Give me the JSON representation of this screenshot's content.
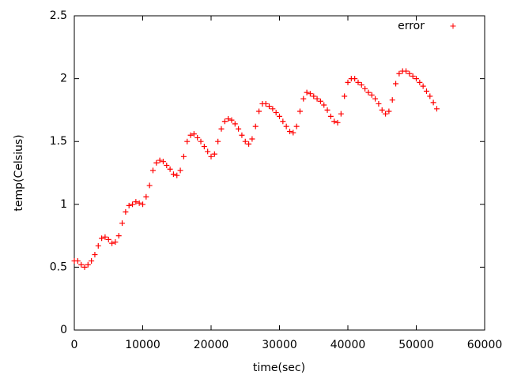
{
  "chart_data": {
    "type": "scatter",
    "x_label": "time(sec)",
    "y_label": "temp(Celsius)",
    "xlim": [
      0,
      60000
    ],
    "ylim": [
      0,
      2.5
    ],
    "xticks": [
      0,
      10000,
      20000,
      30000,
      40000,
      50000,
      60000
    ],
    "yticks": [
      0,
      0.5,
      1,
      1.5,
      2,
      2.5
    ],
    "legend": "top-right",
    "series": [
      {
        "name": "error",
        "color": "#ff0000",
        "x": [
          0,
          500,
          1000,
          1500,
          2000,
          2500,
          3000,
          3500,
          4000,
          4500,
          5000,
          5500,
          6000,
          6500,
          7000,
          7500,
          8000,
          8500,
          9000,
          9500,
          10000,
          10500,
          11000,
          11500,
          12000,
          12500,
          13000,
          13500,
          14000,
          14500,
          15000,
          15500,
          16000,
          16500,
          17000,
          17500,
          18000,
          18500,
          19000,
          19500,
          20000,
          20500,
          21000,
          21500,
          22000,
          22500,
          23000,
          23500,
          24000,
          24500,
          25000,
          25500,
          26000,
          26500,
          27000,
          27500,
          28000,
          28500,
          29000,
          29500,
          30000,
          30500,
          31000,
          31500,
          32000,
          32500,
          33000,
          33500,
          34000,
          34500,
          35000,
          35500,
          36000,
          36500,
          37000,
          37500,
          38000,
          38500,
          39000,
          39500,
          40000,
          40500,
          41000,
          41500,
          42000,
          42500,
          43000,
          43500,
          44000,
          44500,
          45000,
          45500,
          46000,
          46500,
          47000,
          47500,
          48000,
          48500,
          49000,
          49500,
          50000,
          50500,
          51000,
          51500,
          52000,
          52500,
          53000
        ],
        "values": [
          0.55,
          0.55,
          0.52,
          0.5,
          0.52,
          0.55,
          0.6,
          0.67,
          0.73,
          0.74,
          0.72,
          0.69,
          0.7,
          0.75,
          0.85,
          0.94,
          0.99,
          1.0,
          1.02,
          1.01,
          1.0,
          1.06,
          1.15,
          1.27,
          1.33,
          1.35,
          1.34,
          1.31,
          1.28,
          1.24,
          1.23,
          1.27,
          1.38,
          1.5,
          1.55,
          1.56,
          1.53,
          1.5,
          1.46,
          1.42,
          1.38,
          1.4,
          1.5,
          1.6,
          1.66,
          1.68,
          1.67,
          1.64,
          1.6,
          1.55,
          1.5,
          1.48,
          1.52,
          1.62,
          1.74,
          1.8,
          1.8,
          1.78,
          1.76,
          1.73,
          1.7,
          1.66,
          1.62,
          1.58,
          1.57,
          1.62,
          1.74,
          1.84,
          1.89,
          1.88,
          1.86,
          1.84,
          1.82,
          1.79,
          1.75,
          1.7,
          1.66,
          1.65,
          1.72,
          1.86,
          1.97,
          2.0,
          2.0,
          1.97,
          1.95,
          1.92,
          1.89,
          1.87,
          1.84,
          1.8,
          1.75,
          1.72,
          1.74,
          1.83,
          1.96,
          2.04,
          2.06,
          2.06,
          2.04,
          2.02,
          2.0,
          1.97,
          1.94,
          1.9,
          1.86,
          1.81,
          1.76
        ]
      }
    ]
  }
}
